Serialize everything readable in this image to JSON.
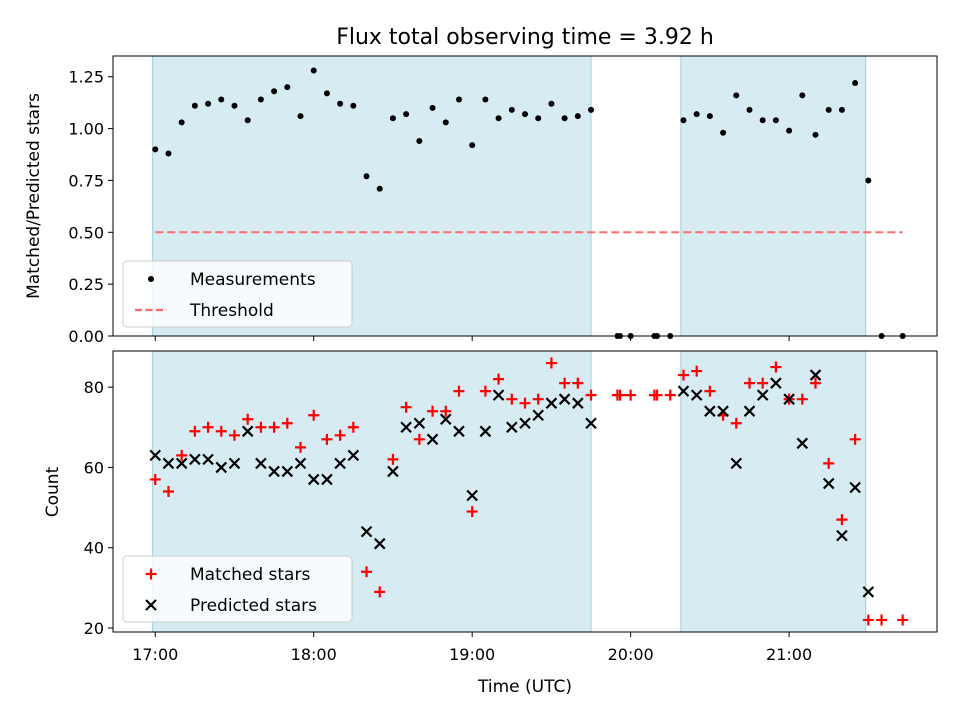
{
  "chart_data": {
    "type": "scatter",
    "title": "Flux total observing time = 3.92 h",
    "xlabel": "Time (UTC)",
    "x_ticks": [
      "17:00",
      "18:00",
      "19:00",
      "20:00",
      "21:00"
    ],
    "shaded_intervals": [
      {
        "start": "16:59",
        "end": "19:45"
      },
      {
        "start": "20:19",
        "end": "21:29"
      }
    ],
    "colors": {
      "shade": "#add8e6",
      "measurement": "#000000",
      "threshold": "#ff6666",
      "matched": "#ff0000",
      "predicted": "#000000"
    },
    "panels": [
      {
        "ylabel": "Matched/Predicted stars",
        "ylim": [
          0,
          1.35
        ],
        "y_ticks": [
          "0.00",
          "0.25",
          "0.50",
          "0.75",
          "1.00",
          "1.25"
        ],
        "legend": [
          "Measurements",
          "Threshold"
        ],
        "legend_position": "lower-left",
        "series": [
          {
            "name": "Measurements",
            "style": "dot",
            "points": [
              [
                "17:00",
                0.9
              ],
              [
                "17:05",
                0.88
              ],
              [
                "17:10",
                1.03
              ],
              [
                "17:15",
                1.11
              ],
              [
                "17:20",
                1.12
              ],
              [
                "17:25",
                1.14
              ],
              [
                "17:30",
                1.11
              ],
              [
                "17:35",
                1.04
              ],
              [
                "17:40",
                1.14
              ],
              [
                "17:45",
                1.18
              ],
              [
                "17:50",
                1.2
              ],
              [
                "17:55",
                1.06
              ],
              [
                "18:00",
                1.28
              ],
              [
                "18:05",
                1.17
              ],
              [
                "18:10",
                1.12
              ],
              [
                "18:15",
                1.11
              ],
              [
                "18:20",
                0.77
              ],
              [
                "18:25",
                0.71
              ],
              [
                "18:30",
                1.05
              ],
              [
                "18:35",
                1.07
              ],
              [
                "18:40",
                0.94
              ],
              [
                "18:45",
                1.1
              ],
              [
                "18:50",
                1.03
              ],
              [
                "18:55",
                1.14
              ],
              [
                "19:00",
                0.92
              ],
              [
                "19:05",
                1.14
              ],
              [
                "19:10",
                1.05
              ],
              [
                "19:15",
                1.09
              ],
              [
                "19:20",
                1.07
              ],
              [
                "19:25",
                1.05
              ],
              [
                "19:30",
                1.12
              ],
              [
                "19:35",
                1.05
              ],
              [
                "19:40",
                1.06
              ],
              [
                "19:45",
                1.09
              ],
              [
                "19:55",
                0.0
              ],
              [
                "19:56",
                0.0
              ],
              [
                "20:00",
                0.0
              ],
              [
                "20:09",
                0.0
              ],
              [
                "20:10",
                0.0
              ],
              [
                "20:15",
                0.0
              ],
              [
                "20:20",
                1.04
              ],
              [
                "20:25",
                1.07
              ],
              [
                "20:30",
                1.06
              ],
              [
                "20:35",
                0.98
              ],
              [
                "20:40",
                1.16
              ],
              [
                "20:45",
                1.09
              ],
              [
                "20:50",
                1.04
              ],
              [
                "20:55",
                1.04
              ],
              [
                "21:00",
                0.99
              ],
              [
                "21:05",
                1.16
              ],
              [
                "21:10",
                0.97
              ],
              [
                "21:15",
                1.09
              ],
              [
                "21:20",
                1.09
              ],
              [
                "21:25",
                1.22
              ],
              [
                "21:30",
                0.75
              ],
              [
                "21:35",
                0.0
              ],
              [
                "21:43",
                0.0
              ]
            ]
          },
          {
            "name": "Threshold",
            "style": "dashed-line",
            "points": [
              [
                "17:00",
                0.5
              ],
              [
                "21:43",
                0.5
              ]
            ]
          }
        ]
      },
      {
        "ylabel": "Count",
        "ylim": [
          19,
          89
        ],
        "y_ticks": [
          "20",
          "40",
          "60",
          "80"
        ],
        "legend": [
          "Matched stars",
          "Predicted stars"
        ],
        "legend_position": "lower-left",
        "series": [
          {
            "name": "Matched stars",
            "style": "plus",
            "points": [
              [
                "17:00",
                57
              ],
              [
                "17:05",
                54
              ],
              [
                "17:10",
                63
              ],
              [
                "17:15",
                69
              ],
              [
                "17:20",
                70
              ],
              [
                "17:25",
                69
              ],
              [
                "17:30",
                68
              ],
              [
                "17:35",
                72
              ],
              [
                "17:40",
                70
              ],
              [
                "17:45",
                70
              ],
              [
                "17:50",
                71
              ],
              [
                "17:55",
                65
              ],
              [
                "18:00",
                73
              ],
              [
                "18:05",
                67
              ],
              [
                "18:10",
                68
              ],
              [
                "18:15",
                70
              ],
              [
                "18:20",
                34
              ],
              [
                "18:25",
                29
              ],
              [
                "18:30",
                62
              ],
              [
                "18:35",
                75
              ],
              [
                "18:40",
                67
              ],
              [
                "18:45",
                74
              ],
              [
                "18:50",
                74
              ],
              [
                "18:55",
                79
              ],
              [
                "19:00",
                49
              ],
              [
                "19:05",
                79
              ],
              [
                "19:10",
                82
              ],
              [
                "19:15",
                77
              ],
              [
                "19:20",
                76
              ],
              [
                "19:25",
                77
              ],
              [
                "19:30",
                86
              ],
              [
                "19:35",
                81
              ],
              [
                "19:40",
                81
              ],
              [
                "19:45",
                78
              ],
              [
                "19:55",
                78
              ],
              [
                "19:56",
                78
              ],
              [
                "20:00",
                78
              ],
              [
                "20:09",
                78
              ],
              [
                "20:10",
                78
              ],
              [
                "20:15",
                78
              ],
              [
                "20:20",
                83
              ],
              [
                "20:25",
                84
              ],
              [
                "20:30",
                79
              ],
              [
                "20:35",
                73
              ],
              [
                "20:40",
                71
              ],
              [
                "20:45",
                81
              ],
              [
                "20:50",
                81
              ],
              [
                "20:55",
                85
              ],
              [
                "21:00",
                77
              ],
              [
                "21:05",
                77
              ],
              [
                "21:10",
                81
              ],
              [
                "21:15",
                61
              ],
              [
                "21:20",
                47
              ],
              [
                "21:25",
                67
              ],
              [
                "21:30",
                22
              ],
              [
                "21:35",
                22
              ],
              [
                "21:43",
                22
              ]
            ]
          },
          {
            "name": "Predicted stars",
            "style": "x",
            "points": [
              [
                "17:00",
                63
              ],
              [
                "17:05",
                61
              ],
              [
                "17:10",
                61
              ],
              [
                "17:15",
                62
              ],
              [
                "17:20",
                62
              ],
              [
                "17:25",
                60
              ],
              [
                "17:30",
                61
              ],
              [
                "17:35",
                69
              ],
              [
                "17:40",
                61
              ],
              [
                "17:45",
                59
              ],
              [
                "17:50",
                59
              ],
              [
                "17:55",
                61
              ],
              [
                "18:00",
                57
              ],
              [
                "18:05",
                57
              ],
              [
                "18:10",
                61
              ],
              [
                "18:15",
                63
              ],
              [
                "18:20",
                44
              ],
              [
                "18:25",
                41
              ],
              [
                "18:30",
                59
              ],
              [
                "18:35",
                70
              ],
              [
                "18:40",
                71
              ],
              [
                "18:45",
                67
              ],
              [
                "18:50",
                72
              ],
              [
                "18:55",
                69
              ],
              [
                "19:00",
                53
              ],
              [
                "19:05",
                69
              ],
              [
                "19:10",
                78
              ],
              [
                "19:15",
                70
              ],
              [
                "19:20",
                71
              ],
              [
                "19:25",
                73
              ],
              [
                "19:30",
                76
              ],
              [
                "19:35",
                77
              ],
              [
                "19:40",
                76
              ],
              [
                "19:45",
                71
              ],
              [
                "20:20",
                79
              ],
              [
                "20:25",
                78
              ],
              [
                "20:30",
                74
              ],
              [
                "20:35",
                74
              ],
              [
                "20:40",
                61
              ],
              [
                "20:45",
                74
              ],
              [
                "20:50",
                78
              ],
              [
                "20:55",
                81
              ],
              [
                "21:00",
                77
              ],
              [
                "21:05",
                66
              ],
              [
                "21:10",
                83
              ],
              [
                "21:15",
                56
              ],
              [
                "21:20",
                43
              ],
              [
                "21:25",
                55
              ],
              [
                "21:30",
                29
              ]
            ]
          }
        ]
      }
    ]
  }
}
